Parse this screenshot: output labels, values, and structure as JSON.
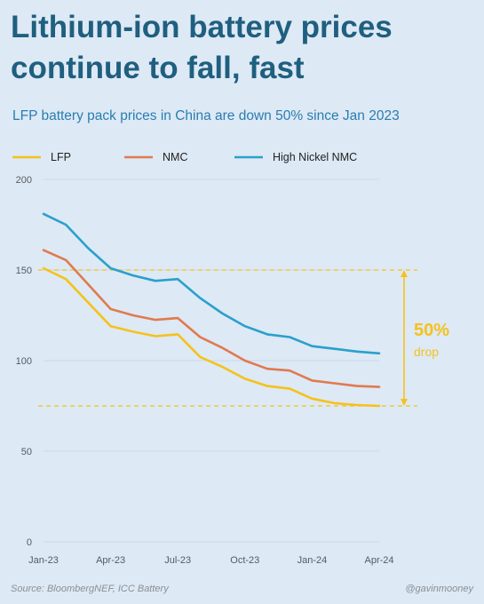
{
  "title_line1": "Lithium-ion battery prices",
  "title_line2": "continue to fall, fast",
  "subtitle": "LFP battery pack prices in China are down 50% since Jan 2023",
  "source": "Source: BloombergNEF, ICC Battery",
  "handle": "@gavinmooney",
  "annotation": {
    "value": "50%",
    "label": "drop",
    "color": "#f5c21b"
  },
  "chart_data": {
    "type": "line",
    "x": [
      "Jan-23",
      "Feb-23",
      "Mar-23",
      "Apr-23",
      "May-23",
      "Jun-23",
      "Jul-23",
      "Aug-23",
      "Sep-23",
      "Oct-23",
      "Nov-23",
      "Dec-23",
      "Jan-24",
      "Feb-24",
      "Mar-24",
      "Apr-24"
    ],
    "xticks": [
      "Jan-23",
      "Apr-23",
      "Jul-23",
      "Oct-23",
      "Jan-24",
      "Apr-24"
    ],
    "yticks": [
      0,
      50,
      100,
      150,
      200
    ],
    "ylim": [
      0,
      200
    ],
    "grid": true,
    "legend": "top",
    "series": [
      {
        "name": "LFP",
        "color": "#f5c21b",
        "values": [
          151,
          145,
          132,
          119,
          116,
          113.5,
          114.5,
          102,
          96.5,
          90,
          86,
          84.5,
          79,
          76.5,
          75.5,
          75
        ]
      },
      {
        "name": "NMC",
        "color": "#e07a4f",
        "values": [
          161,
          155.5,
          142,
          128.5,
          125,
          122.5,
          123.5,
          113,
          107,
          100,
          95.5,
          94.5,
          89,
          87.5,
          86,
          85.5
        ]
      },
      {
        "name": "High Nickel NMC",
        "color": "#2aa0cc",
        "values": [
          181,
          175,
          162,
          151,
          147,
          144,
          145,
          134.5,
          126,
          119,
          114.5,
          113,
          108,
          106.5,
          105,
          104
        ]
      }
    ],
    "reference_lines": [
      {
        "value": 150,
        "color": "#f5c21b"
      },
      {
        "value": 75,
        "color": "#f5c21b"
      }
    ]
  }
}
